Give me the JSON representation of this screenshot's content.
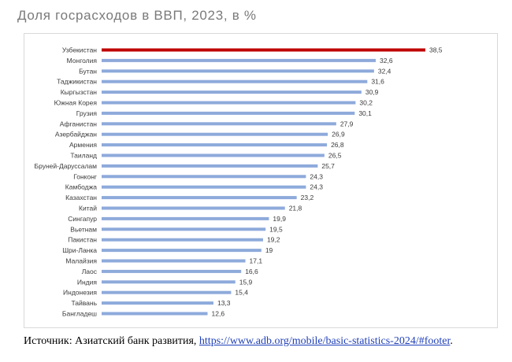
{
  "title": "Доля госрасходов в ВВП, 2023, в %",
  "source": {
    "prefix": "Источник: Азиатский банк развития, ",
    "link_text": "https://www.adb.org/mobile/basic-statistics-2024/#footer",
    "suffix": "."
  },
  "chart_data": {
    "type": "bar",
    "orientation": "horizontal",
    "categories": [
      "Узбекистан",
      "Монголия",
      "Бутан",
      "Таджикистан",
      "Кыргызстан",
      "Южная Корея",
      "Грузия",
      "Афганистан",
      "Азербайджан",
      "Армения",
      "Таиланд",
      "Бруней-Даруссалам",
      "Гонконг",
      "Камбоджа",
      "Казахстан",
      "Китай",
      "Сингапур",
      "Вьетнам",
      "Пакистан",
      "Шри-Ланка",
      "Малайзия",
      "Лаос",
      "Индия",
      "Индонезия",
      "Тайвань",
      "Бангладеш"
    ],
    "values": [
      38.5,
      32.6,
      32.4,
      31.6,
      30.9,
      30.2,
      30.1,
      27.9,
      26.9,
      26.8,
      26.5,
      25.7,
      24.3,
      24.3,
      23.2,
      21.8,
      19.9,
      19.5,
      19.2,
      19,
      17.1,
      16.6,
      15.9,
      15.4,
      13.3,
      12.6
    ],
    "value_labels": [
      "38,5",
      "32,6",
      "32,4",
      "31,6",
      "30,9",
      "30,2",
      "30,1",
      "27,9",
      "26,9",
      "26,8",
      "26,5",
      "25,7",
      "24,3",
      "24,3",
      "23,2",
      "21,8",
      "19,9",
      "19,5",
      "19,2",
      "19",
      "17,1",
      "16,6",
      "15,9",
      "15,4",
      "13,3",
      "12,6"
    ],
    "highlight_index": 0,
    "colors": {
      "bar": "#8eaadb",
      "highlight": "#c00000"
    },
    "xlim": [
      0,
      40
    ],
    "grid": false,
    "legend": false
  }
}
